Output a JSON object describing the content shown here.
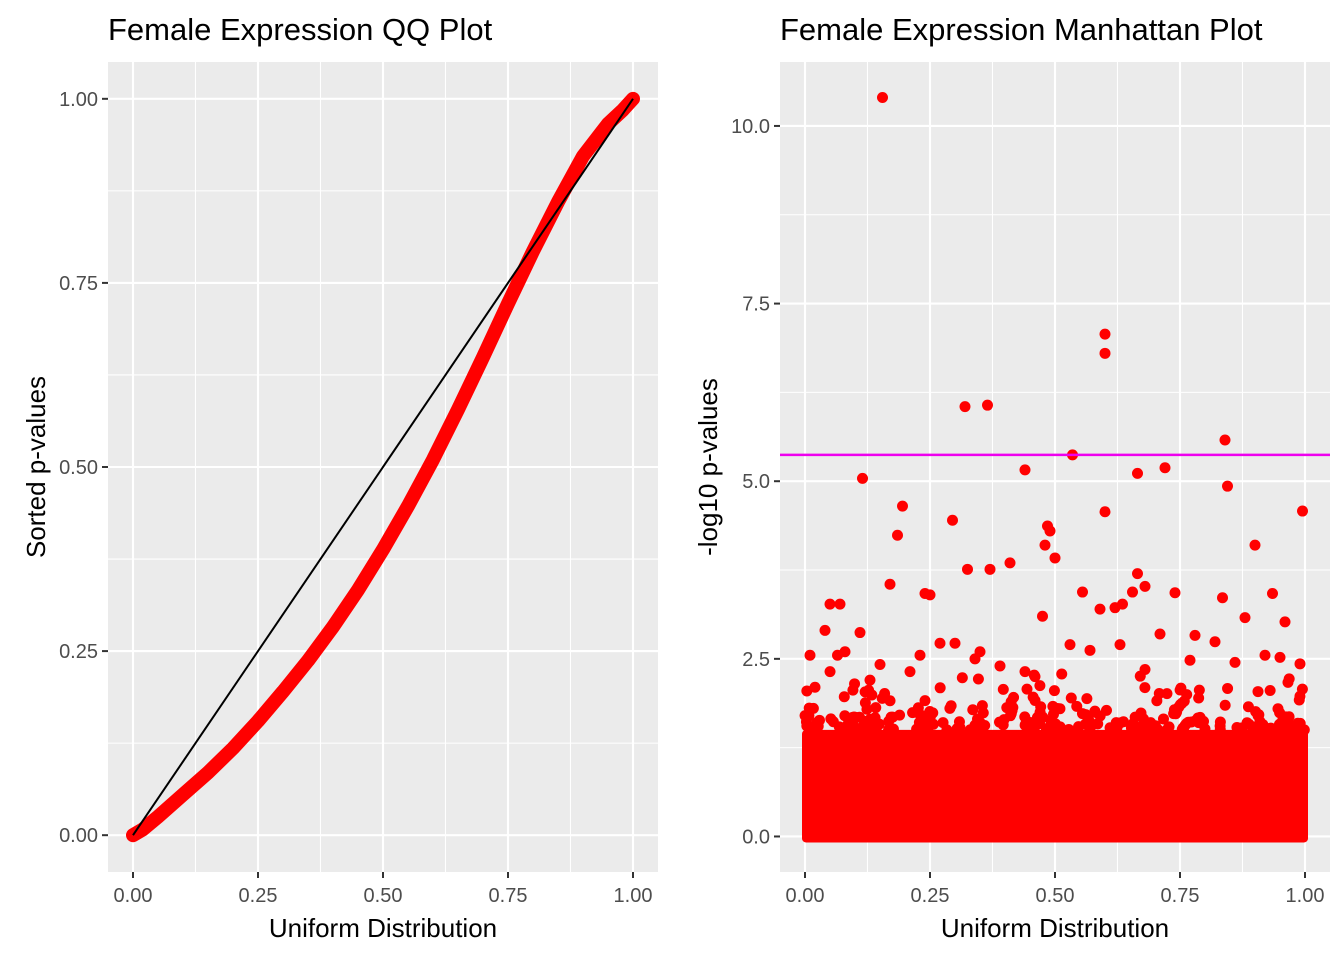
{
  "colors": {
    "panel_bg": "#EBEBEB",
    "grid": "#FFFFFF",
    "points": "#FF0000",
    "reference_line": "#000000",
    "threshold_line": "#EE00EE",
    "tick_text": "#4D4D4D"
  },
  "chart_data": [
    {
      "type": "scatter",
      "title": "Female Expression QQ Plot",
      "xlabel": "Uniform Distribution",
      "ylabel": "Sorted p-values",
      "xlim": [
        -0.05,
        1.05
      ],
      "ylim": [
        -0.05,
        1.05
      ],
      "x_ticks": [
        0,
        0.25,
        0.5,
        0.75,
        1
      ],
      "x_tick_labels": [
        "0.00",
        "0.25",
        "0.50",
        "0.75",
        "1.00"
      ],
      "y_ticks": [
        0,
        0.25,
        0.5,
        0.75,
        1
      ],
      "y_tick_labels": [
        "0.00",
        "0.25",
        "0.50",
        "0.75",
        "1.00"
      ],
      "grid": true,
      "series": [
        {
          "kind": "points",
          "x": [
            0,
            0.02,
            0.05,
            0.1,
            0.15,
            0.2,
            0.25,
            0.3,
            0.35,
            0.4,
            0.45,
            0.5,
            0.55,
            0.6,
            0.65,
            0.7,
            0.75,
            0.8,
            0.85,
            0.9,
            0.95,
            0.98,
            1.0
          ],
          "y": [
            0,
            0.008,
            0.025,
            0.055,
            0.085,
            0.118,
            0.155,
            0.195,
            0.237,
            0.283,
            0.333,
            0.388,
            0.447,
            0.51,
            0.578,
            0.649,
            0.722,
            0.793,
            0.86,
            0.922,
            0.966,
            0.985,
            1.0
          ]
        },
        {
          "kind": "line",
          "x": [
            0,
            1
          ],
          "y": [
            0,
            1
          ]
        }
      ]
    },
    {
      "type": "scatter",
      "title": "Female Expression Manhattan Plot",
      "xlabel": "Uniform Distribution",
      "ylabel": "-log10 p-values",
      "xlim": [
        -0.05,
        1.05
      ],
      "ylim": [
        -0.5,
        10.9
      ],
      "x_ticks": [
        0,
        0.25,
        0.5,
        0.75,
        1
      ],
      "x_tick_labels": [
        "0.00",
        "0.25",
        "0.50",
        "0.75",
        "1.00"
      ],
      "y_ticks": [
        0,
        2.5,
        5,
        7.5,
        10
      ],
      "y_tick_labels": [
        "0.0",
        "2.5",
        "5.0",
        "7.5",
        "10.0"
      ],
      "grid": true,
      "threshold": 5.37,
      "dense_band": {
        "x": [
          0,
          1
        ],
        "y": [
          0,
          1.5
        ]
      },
      "series": [
        {
          "kind": "points",
          "x": [
            0.155,
            0.6,
            0.6,
            0.32,
            0.365,
            0.84,
            0.535,
            0.72,
            0.44,
            0.665,
            0.115,
            0.845,
            0.195,
            0.6,
            0.995,
            0.295,
            0.485,
            0.49,
            0.185,
            0.48,
            0.5,
            0.9,
            0.665,
            0.68,
            0.17,
            0.325,
            0.37,
            0.41,
            0.935,
            0.555,
            0.24,
            0.25,
            0.74,
            0.05,
            0.07,
            0.635,
            0.655,
            0.88,
            0.475,
            0.59,
            0.62,
            0.835,
            0.04,
            0.11,
            0.065,
            0.96,
            0.3,
            0.27,
            0.78,
            0.23,
            0.01,
            0.53,
            0.71,
            0.44,
            0.82,
            0.15,
            0.95,
            0.99,
            0.39,
            0.57,
            0.21,
            0.34,
            0.68,
            0.86,
            0.13,
            0.46,
            0.77,
            0.02,
            0.92,
            0.35,
            0.63,
            0.08
          ],
          "y": [
            10.4,
            7.07,
            6.8,
            6.05,
            6.07,
            5.58,
            5.37,
            5.19,
            5.16,
            5.11,
            5.04,
            4.93,
            4.65,
            4.57,
            4.58,
            4.45,
            4.37,
            4.3,
            4.24,
            4.1,
            3.92,
            4.1,
            3.7,
            3.52,
            3.55,
            3.76,
            3.76,
            3.85,
            3.42,
            3.44,
            3.42,
            3.4,
            3.43,
            3.27,
            3.27,
            3.27,
            3.44,
            3.08,
            3.1,
            3.2,
            3.22,
            3.36,
            2.9,
            2.87,
            2.55,
            3.02,
            2.72,
            2.72,
            2.83,
            2.55,
            2.55,
            2.7,
            2.85,
            2.32,
            2.74,
            2.42,
            2.52,
            2.43,
            2.4,
            2.62,
            2.32,
            2.5,
            2.35,
            2.45,
            2.2,
            2.25,
            2.48,
            2.1,
            2.55,
            2.6,
            2.7,
            2.6
          ]
        }
      ]
    }
  ]
}
